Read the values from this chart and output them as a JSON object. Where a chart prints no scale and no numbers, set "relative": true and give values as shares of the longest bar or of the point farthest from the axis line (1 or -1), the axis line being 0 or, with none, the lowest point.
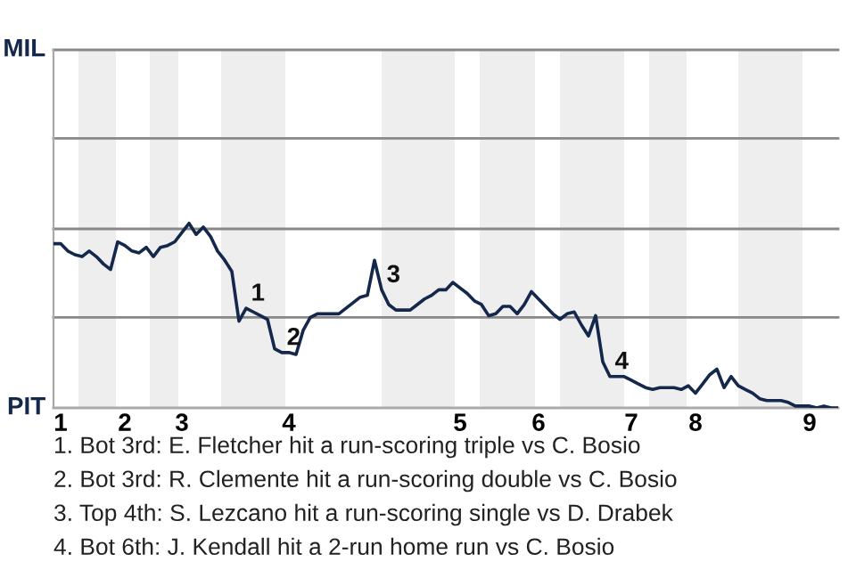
{
  "chart_data": {
    "type": "line",
    "relative": true,
    "categories": [
      null,
      "1",
      null,
      null,
      null,
      null,
      null,
      null,
      null,
      null,
      "2",
      null,
      null,
      null,
      null,
      null,
      null,
      null,
      "3",
      null,
      null,
      null,
      null,
      null,
      null,
      null,
      null,
      null,
      null,
      null,
      null,
      null,
      null,
      "4",
      null,
      null,
      null,
      null,
      null,
      null,
      null,
      null,
      null,
      null,
      null,
      null,
      null,
      null,
      null,
      null,
      null,
      null,
      null,
      null,
      null,
      null,
      null,
      "5",
      null,
      null,
      null,
      null,
      null,
      null,
      null,
      null,
      null,
      null,
      "6",
      null,
      null,
      null,
      null,
      null,
      null,
      null,
      null,
      null,
      null,
      null,
      null,
      "7",
      null,
      null,
      null,
      null,
      null,
      null,
      null,
      null,
      "8",
      null,
      null,
      null,
      null,
      null,
      null,
      null,
      null,
      null,
      null,
      null,
      null,
      null,
      null,
      null,
      "9",
      null,
      null,
      null,
      null
    ],
    "series": [
      {
        "color": "#14284b",
        "values": [
          0.89,
          0.89,
          0.85,
          0.83,
          0.82,
          0.85,
          0.82,
          0.78,
          0.75,
          0.9,
          0.88,
          0.85,
          0.84,
          0.87,
          0.82,
          0.87,
          0.88,
          0.9,
          0.95,
          1,
          0.94,
          0.98,
          0.93,
          0.85,
          0.8,
          0.74,
          0.47,
          0.54,
          0.52,
          0.5,
          0.48,
          0.32,
          0.3,
          0.3,
          0.29,
          0.42,
          0.49,
          0.51,
          0.51,
          0.51,
          0.51,
          0.54,
          0.57,
          0.6,
          0.61,
          0.8,
          0.64,
          0.56,
          0.53,
          0.53,
          0.53,
          0.56,
          0.59,
          0.61,
          0.64,
          0.64,
          0.68,
          0.65,
          0.62,
          0.58,
          0.56,
          0.5,
          0.51,
          0.55,
          0.55,
          0.51,
          0.56,
          0.63,
          0.59,
          0.55,
          0.51,
          0.48,
          0.51,
          0.52,
          0.45,
          0.39,
          0.5,
          0.25,
          0.17,
          0.17,
          0.17,
          0.15,
          0.13,
          0.11,
          0.1,
          0.11,
          0.11,
          0.11,
          0.1,
          0.12,
          0.08,
          0.13,
          0.18,
          0.21,
          0.11,
          0.17,
          0.12,
          0.1,
          0.08,
          0.05,
          0.04,
          0.04,
          0.04,
          0.03,
          0.01,
          0.01,
          0.01,
          0,
          0.01,
          0,
          0
        ],
        "name": null
      }
    ],
    "marker": "none",
    "line_style": "solid",
    "ref_lines": [
      {
        "axis": "y",
        "value": 0,
        "label": "PIT",
        "color": "#aaaaaa"
      },
      {
        "axis": "y",
        "value": 0.49,
        "color": "#888888"
      },
      {
        "axis": "y",
        "value": 0.97,
        "color": "#888888"
      },
      {
        "axis": "y",
        "value": 1.46,
        "color": "#888888"
      },
      {
        "axis": "y",
        "value": 1.94,
        "label": "MIL",
        "color": "#888888"
      }
    ],
    "annotations": [
      {
        "text": "1",
        "y": 0.54
      },
      {
        "text": "2",
        "y": 0.3
      },
      {
        "text": "3",
        "y": 0.64
      },
      {
        "text": "4",
        "y": 0.17
      },
      "1. Bot 3rd: E. Fletcher hit a run-scoring triple vs C. Bosio",
      "2. Bot 3rd: R. Clemente hit a run-scoring double vs C. Bosio",
      "3. Top 4th: S. Lezcano hit a run-scoring single vs D. Drabek",
      "4. Bot 6th: J. Kendall hit a 2-run home run vs C. Bosio"
    ]
  }
}
